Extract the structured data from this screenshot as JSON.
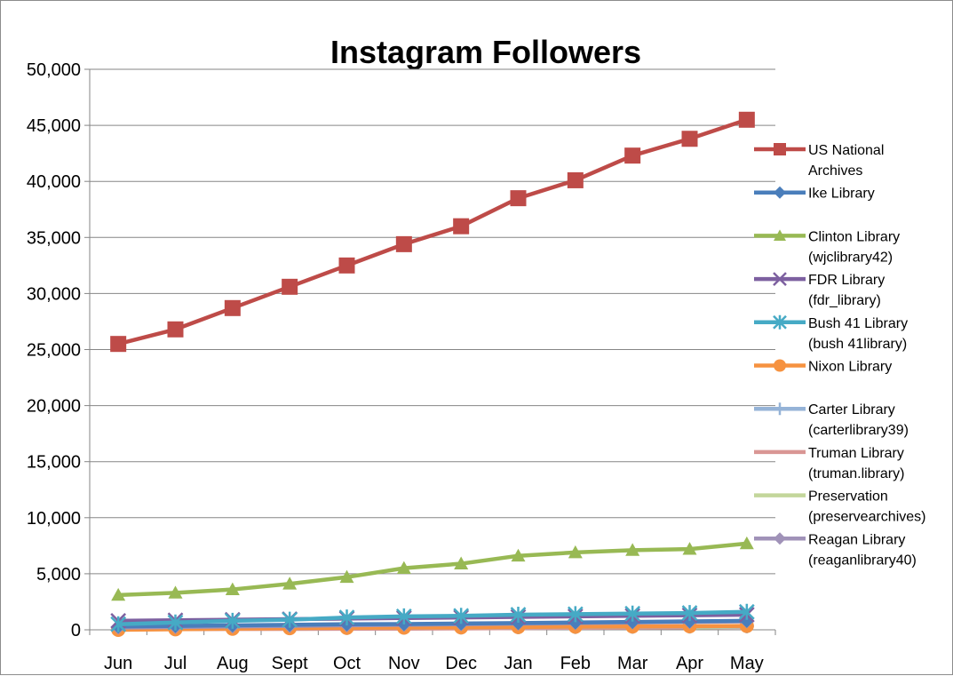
{
  "chart_data": {
    "type": "line",
    "title": "Instagram Followers",
    "xlabel": "",
    "ylabel": "",
    "ylim": [
      0,
      50000
    ],
    "yticks": [
      0,
      5000,
      10000,
      15000,
      20000,
      25000,
      30000,
      35000,
      40000,
      45000,
      50000
    ],
    "ytick_labels": [
      "0",
      "5,000",
      "10,000",
      "15,000",
      "20,000",
      "25,000",
      "30,000",
      "35,000",
      "40,000",
      "45,000",
      "50,000"
    ],
    "grid": true,
    "legend_position": "right",
    "categories": [
      "Jun",
      "Jul",
      "Aug",
      "Sept",
      "Oct",
      "Nov",
      "Dec",
      "Jan",
      "Feb",
      "Mar",
      "Apr",
      "May"
    ],
    "series": [
      {
        "name": "US National Archives",
        "color": "#be4b48",
        "marker": "square",
        "values": [
          25500,
          26800,
          28700,
          30600,
          32500,
          34400,
          36000,
          38500,
          40100,
          42300,
          43800,
          45500
        ]
      },
      {
        "name": "Ike Library",
        "color": "#4a7ebb",
        "marker": "diamond",
        "values": [
          300,
          350,
          400,
          450,
          500,
          520,
          560,
          600,
          650,
          700,
          750,
          800
        ]
      },
      {
        "name": "Clinton Library (wjclibrary42)",
        "color": "#98b954",
        "marker": "triangle",
        "values": [
          3100,
          3300,
          3600,
          4100,
          4700,
          5500,
          5900,
          6600,
          6900,
          7100,
          7200,
          7700
        ]
      },
      {
        "name": "FDR Library (fdr_library)",
        "color": "#7d60a0",
        "marker": "x",
        "values": [
          800,
          850,
          900,
          950,
          1000,
          1050,
          1100,
          1150,
          1200,
          1250,
          1300,
          1350
        ]
      },
      {
        "name": "Bush 41 Library (bush 41library)",
        "color": "#46aac5",
        "marker": "star",
        "values": [
          500,
          650,
          800,
          900,
          1100,
          1200,
          1250,
          1350,
          1400,
          1450,
          1500,
          1600
        ]
      },
      {
        "name": "Nixon Library",
        "color": "#f69240",
        "marker": "circle",
        "values": [
          0,
          50,
          100,
          150,
          180,
          200,
          220,
          250,
          280,
          300,
          320,
          350
        ]
      },
      {
        "name": "Carter Library (carterlibrary39)",
        "color": "#95b3d7",
        "marker": "plus",
        "values": [
          100,
          120,
          140,
          160,
          180,
          200,
          220,
          240,
          260,
          280,
          300,
          320
        ]
      },
      {
        "name": "Truman Library (truman.library)",
        "color": "#d99694",
        "marker": "none",
        "values": [
          50,
          60,
          70,
          80,
          90,
          100,
          120,
          150,
          180,
          200,
          220,
          250
        ]
      },
      {
        "name": "Preservation (preservearchives)",
        "color": "#c3d69b",
        "marker": "none",
        "values": [
          null,
          null,
          null,
          null,
          null,
          null,
          null,
          null,
          null,
          null,
          200,
          300
        ]
      },
      {
        "name": "Reagan Library (reaganlibrary40)",
        "color": "#a092b8",
        "marker": "diamond",
        "values": [
          200,
          250,
          300,
          350,
          400,
          450,
          500,
          550,
          600,
          650,
          700,
          750
        ]
      }
    ]
  }
}
